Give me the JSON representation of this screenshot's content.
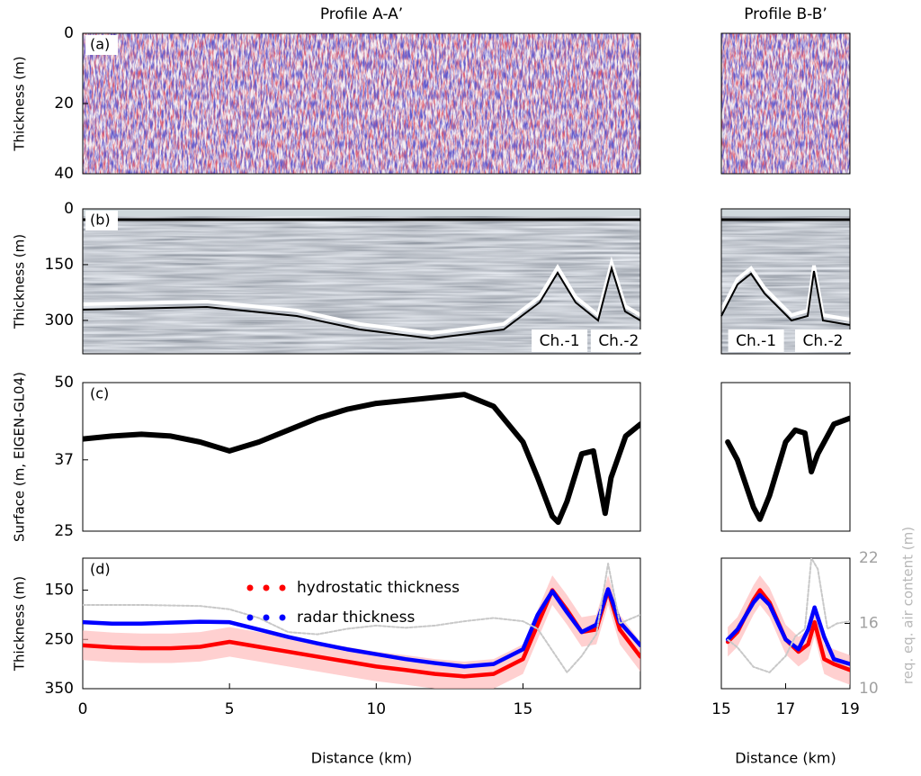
{
  "chart_data": [
    {
      "type": "image",
      "title": "Profile A-A’",
      "panel_label": "(a)",
      "ylabel": "Thickness (m)",
      "xlim": [
        0,
        19
      ],
      "ylim": [
        40,
        0
      ],
      "yticks": [
        0,
        20,
        40
      ]
    },
    {
      "type": "image",
      "title": "Profile B-B’",
      "xlim": [
        15,
        19
      ],
      "ylim": [
        40,
        0
      ]
    },
    {
      "type": "image",
      "panel_label": "(b)",
      "ylabel": "Thickness (m)",
      "xlim": [
        0,
        19
      ],
      "ylim": [
        390,
        0
      ],
      "yticks": [
        0,
        150,
        300
      ],
      "annotations": [
        "Ch.-1",
        "Ch.-2"
      ]
    },
    {
      "type": "image",
      "xlim": [
        15,
        19
      ],
      "ylim": [
        390,
        0
      ],
      "annotations": [
        "Ch.-1",
        "Ch.-2"
      ]
    },
    {
      "type": "line",
      "panel_label": "(c)",
      "ylabel": "Surface (m, EIGEN-GL04)",
      "xlim": [
        0,
        19
      ],
      "ylim": [
        25,
        50
      ],
      "yticks": [
        25,
        37,
        50
      ],
      "series": [
        {
          "color": "#000000",
          "x": [
            0,
            1,
            2,
            3,
            4,
            5,
            6,
            7,
            8,
            9,
            10,
            11,
            12,
            13,
            14,
            15,
            15.5,
            16,
            16.2,
            16.5,
            17,
            17.4,
            17.8,
            18,
            18.5,
            19
          ],
          "values": [
            40.5,
            41,
            41.3,
            41,
            40,
            38.5,
            40,
            42,
            44,
            45.5,
            46.5,
            47,
            47.5,
            48,
            46,
            40,
            34,
            27.5,
            26.5,
            30,
            38,
            38.5,
            28,
            34,
            41,
            43
          ]
        }
      ]
    },
    {
      "type": "line",
      "xlim": [
        15,
        19
      ],
      "ylim": [
        25,
        50
      ],
      "series": [
        {
          "color": "#000000",
          "x": [
            15.2,
            15.5,
            16,
            16.2,
            16.5,
            17,
            17.3,
            17.6,
            17.8,
            18,
            18.5,
            19
          ],
          "values": [
            40,
            37,
            29,
            27,
            31,
            40,
            42,
            41.5,
            35,
            38,
            43,
            44
          ]
        }
      ]
    },
    {
      "type": "line",
      "panel_label": "(d)",
      "ylabel": "Thickness (m)",
      "xlabel": "Distance (km)",
      "xlim": [
        0,
        19
      ],
      "xticks": [
        0,
        5,
        10,
        15
      ],
      "ylim": [
        350,
        85
      ],
      "yticks": [
        150,
        250,
        350
      ],
      "y2lim": [
        10,
        22
      ],
      "legend": "upper center",
      "series": [
        {
          "name": "hydrostatic thickness",
          "color": "#ff0000",
          "error": 30,
          "x": [
            0,
            1,
            2,
            3,
            4,
            5,
            6,
            7,
            8,
            9,
            10,
            11,
            12,
            13,
            14,
            15,
            15.5,
            16,
            16.5,
            17,
            17.5,
            17.9,
            18.3,
            19
          ],
          "values": [
            262,
            266,
            268,
            268,
            265,
            255,
            265,
            275,
            285,
            295,
            305,
            312,
            320,
            325,
            320,
            290,
            220,
            150,
            190,
            235,
            230,
            150,
            230,
            285
          ]
        },
        {
          "name": "radar thickness",
          "color": "#0000ff",
          "x": [
            0,
            1,
            2,
            3,
            4,
            5,
            6,
            7,
            8,
            9,
            10,
            11,
            12,
            13,
            14,
            15,
            15.5,
            16,
            16.5,
            17,
            17.5,
            17.9,
            18.3,
            19
          ],
          "values": [
            215,
            218,
            218,
            216,
            214,
            215,
            230,
            245,
            258,
            270,
            280,
            290,
            298,
            305,
            300,
            270,
            200,
            152,
            195,
            235,
            220,
            148,
            215,
            262
          ]
        },
        {
          "color": "#c8c8c8",
          "axis": "y2",
          "x": [
            0,
            2,
            4,
            5,
            6,
            7,
            8,
            9,
            10,
            11,
            12,
            13,
            14,
            15,
            15.5,
            16,
            16.5,
            17,
            17.5,
            17.9,
            18.3,
            19
          ],
          "values": [
            17.7,
            17.7,
            17.6,
            17.3,
            16.5,
            15.2,
            15,
            15.5,
            15.8,
            15.6,
            15.8,
            16.2,
            16.5,
            16.2,
            15.5,
            13.5,
            11.5,
            13,
            15,
            21.5,
            16,
            16.8
          ]
        }
      ]
    },
    {
      "type": "line",
      "xlabel": "Distance (km)",
      "xlim": [
        15,
        19
      ],
      "xticks": [
        15,
        17,
        19
      ],
      "ylim": [
        350,
        85
      ],
      "y2lim": [
        10,
        22
      ],
      "y2ticks": [
        10,
        16,
        22
      ],
      "y2label": "req. eq. air content (m)",
      "series": [
        {
          "color": "#ff0000",
          "error": 30,
          "x": [
            15.2,
            15.5,
            16,
            16.2,
            16.5,
            17,
            17.4,
            17.7,
            17.9,
            18.2,
            18.5,
            19
          ],
          "values": [
            255,
            235,
            170,
            150,
            175,
            250,
            275,
            260,
            215,
            290,
            300,
            312
          ]
        },
        {
          "color": "#0000ff",
          "x": [
            15.2,
            15.5,
            16,
            16.2,
            16.5,
            17,
            17.4,
            17.7,
            17.9,
            18.2,
            18.5,
            19
          ],
          "values": [
            250,
            230,
            175,
            160,
            180,
            250,
            270,
            230,
            185,
            245,
            290,
            300
          ]
        },
        {
          "color": "#c8c8c8",
          "axis": "y2",
          "x": [
            15.2,
            15.5,
            16,
            16.5,
            17,
            17.3,
            17.6,
            17.8,
            18,
            18.3,
            18.6,
            19
          ],
          "values": [
            14.5,
            13.8,
            12,
            11.5,
            13,
            14.8,
            15.5,
            22,
            21,
            15.5,
            16,
            16.2
          ]
        }
      ]
    }
  ]
}
